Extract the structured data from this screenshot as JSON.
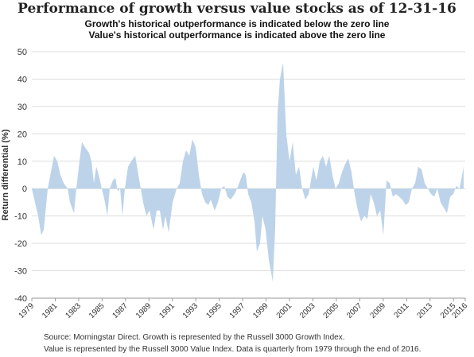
{
  "chart_data": {
    "type": "area",
    "title": "Performance of growth versus value stocks as of 12-31-16",
    "subtitle": [
      "Growth's historical outperformance is indicated below the zero line",
      "Value's historical outperformance is indicated above the zero line"
    ],
    "ylabel": "Return differential (%)",
    "source": [
      "Source: Morningstar Direct. Growth is represented by the Russell 3000 Growth Index.",
      "Value is represented by the Russell 3000 Value Index. Data is quarterly from 1979 through the end of 2016."
    ],
    "color": "#bcd3ea",
    "grid": true,
    "xlim": [
      1979,
      2016
    ],
    "xticks": [
      1979,
      1981,
      1983,
      1985,
      1987,
      1989,
      1991,
      1993,
      1995,
      1997,
      1999,
      2001,
      2003,
      2005,
      2007,
      2009,
      2011,
      2013,
      2015,
      2016
    ],
    "ylim": [
      -40,
      50
    ],
    "yticks": [
      -40,
      -30,
      -20,
      -10,
      0,
      10,
      20,
      30,
      40,
      50
    ],
    "x": [
      1979.0,
      1979.54,
      1979.81,
      1980.02,
      1980.36,
      1980.9,
      1981.17,
      1981.44,
      1981.72,
      1982.06,
      1982.26,
      1982.6,
      1982.8,
      1983.07,
      1983.28,
      1983.55,
      1983.89,
      1984.09,
      1984.3,
      1984.5,
      1984.77,
      1984.97,
      1985.25,
      1985.45,
      1985.65,
      1985.92,
      1986.13,
      1986.33,
      1986.54,
      1986.74,
      1986.94,
      1987.21,
      1987.49,
      1987.83,
      1988.1,
      1988.5,
      1988.78,
      1989.05,
      1989.39,
      1989.66,
      1989.93,
      1990.2,
      1990.41,
      1990.68,
      1991.02,
      1991.36,
      1991.63,
      1991.9,
      1992.17,
      1992.44,
      1992.71,
      1992.99,
      1993.26,
      1993.53,
      1993.8,
      1994.07,
      1994.27,
      1994.61,
      1994.89,
      1995.16,
      1995.43,
      1995.7,
      1995.97,
      1996.31,
      1996.52,
      1996.79,
      1997.06,
      1997.26,
      1997.47,
      1997.74,
      1998.01,
      1998.21,
      1998.48,
      1998.69,
      1998.96,
      1999.23,
      1999.36,
      1999.57,
      1999.77,
      1999.98,
      2000.18,
      2000.45,
      2000.72,
      2001.0,
      2001.27,
      2001.54,
      2001.81,
      2002.08,
      2002.35,
      2002.63,
      2003.03,
      2003.3,
      2003.58,
      2003.85,
      2004.12,
      2004.39,
      2004.66,
      2004.93,
      2005.21,
      2005.48,
      2005.75,
      2006.02,
      2006.29,
      2006.56,
      2006.83,
      2007.11,
      2007.38,
      2007.65,
      2007.92,
      2008.19,
      2008.46,
      2008.74,
      2009.01,
      2009.28,
      2009.55,
      2009.82,
      2010.09,
      2010.36,
      2010.64,
      2010.91,
      2011.18,
      2011.45,
      2011.72,
      2011.99,
      2012.27,
      2012.54,
      2012.81,
      2013.08,
      2013.35,
      2013.62,
      2013.89,
      2014.17,
      2014.44,
      2014.71,
      2014.98,
      2015.25,
      2015.52,
      2015.86
    ],
    "values": [
      0,
      -10,
      -17,
      -15,
      0,
      12,
      10,
      5,
      2,
      0,
      -5,
      -9,
      0,
      10,
      17,
      15,
      13,
      10,
      2,
      8,
      4,
      0,
      -5,
      -10,
      0,
      3,
      4,
      -1,
      0,
      -10,
      0,
      8,
      10,
      12,
      5,
      -5,
      -10,
      -8,
      -15,
      -8,
      -8,
      -15,
      -10,
      -16,
      -5,
      0,
      2,
      10,
      14,
      12,
      18,
      15,
      5,
      -2,
      -5,
      -6,
      -4,
      -8,
      -5,
      0,
      1,
      -3,
      -4,
      -2,
      0,
      3,
      6,
      5,
      -2,
      -5,
      -12,
      -23,
      -20,
      -10,
      -15,
      -26,
      -29,
      -34,
      -15,
      28,
      40,
      46,
      20,
      10,
      17,
      5,
      8,
      0,
      -4,
      -2,
      8,
      3,
      10,
      12,
      8,
      12,
      5,
      0,
      2,
      6,
      9,
      11,
      6,
      -2,
      -8,
      -12,
      -10,
      -11,
      -2,
      -5,
      -10,
      -8,
      -17,
      3,
      2,
      -3,
      -2,
      -3,
      -4,
      -6,
      -5,
      0,
      2,
      8,
      7,
      2,
      0,
      -2,
      -3,
      0,
      -5,
      -7,
      -9,
      -3,
      -2,
      1,
      0,
      8
    ]
  }
}
